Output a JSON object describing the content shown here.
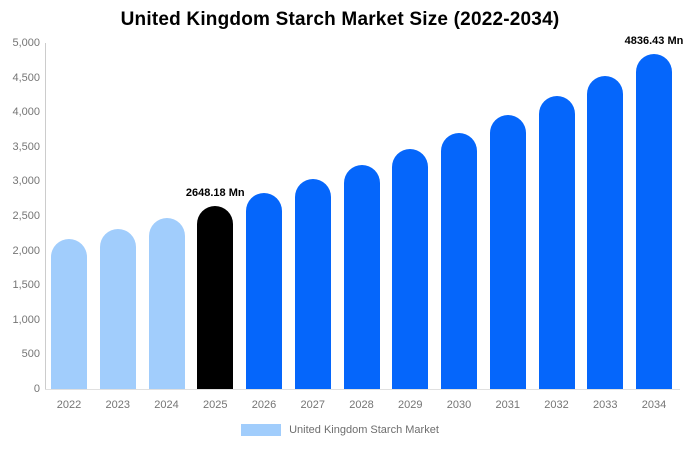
{
  "title": "United Kingdom Starch Market Size (2022-2034)",
  "legend": {
    "label": "United Kingdom Starch Market",
    "swatch_color": "#a1cdfc"
  },
  "palette": {
    "historical": "#a1cdfc",
    "base_year": "#000000",
    "forecast": "#0566fb",
    "axis_line": "#cccccc",
    "baseline": "#e0e0e0",
    "tick_text": "#757575"
  },
  "chart_data": {
    "type": "bar",
    "title": "United Kingdom Starch Market Size (2022-2034)",
    "categories": [
      "2022",
      "2023",
      "2024",
      "2025",
      "2026",
      "2027",
      "2028",
      "2029",
      "2030",
      "2031",
      "2032",
      "2033",
      "2034"
    ],
    "values": [
      2166,
      2317,
      2477,
      2648.18,
      2832,
      3028,
      3238,
      3462,
      3702,
      3959,
      4233,
      4526,
      4836.43
    ],
    "color_roles": [
      "historical",
      "historical",
      "historical",
      "base_year",
      "forecast",
      "forecast",
      "forecast",
      "forecast",
      "forecast",
      "forecast",
      "forecast",
      "forecast",
      "forecast"
    ],
    "unit": "Mn",
    "xlabel": "",
    "ylabel": "",
    "ylim": [
      0,
      5000
    ],
    "ytick_step": 500,
    "grid": false,
    "legend_position": "bottom",
    "legend_entries": [
      "United Kingdom Starch Market"
    ],
    "annotations": [
      {
        "category": "2025",
        "text": "2648.18 Mn"
      },
      {
        "category": "2034",
        "text": "4836.43 Mn"
      }
    ]
  }
}
